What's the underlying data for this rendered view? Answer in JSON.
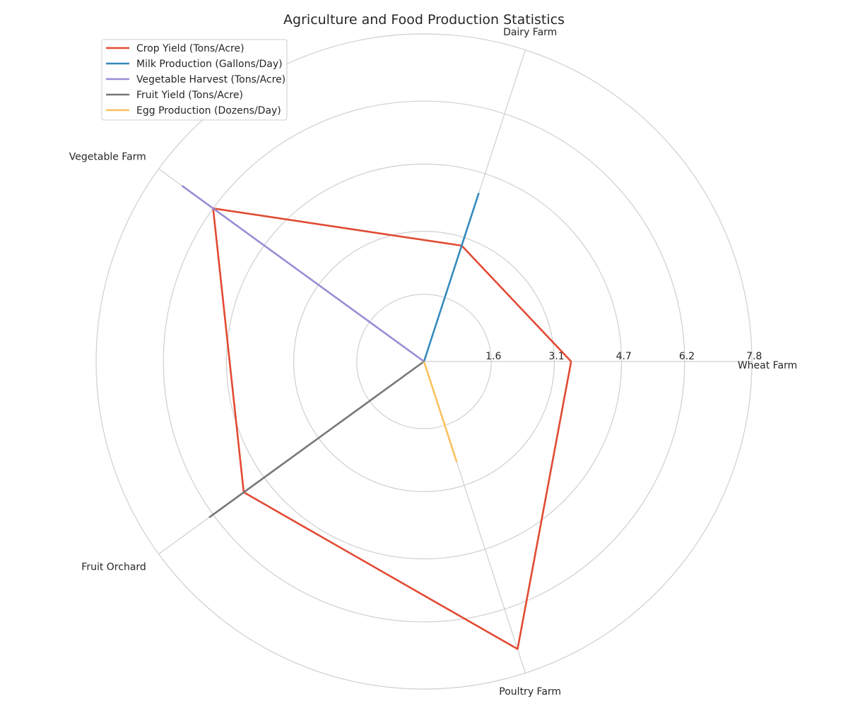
{
  "chart_data": {
    "type": "radar",
    "title": "Agriculture and Food Production Statistics",
    "categories": [
      "Wheat Farm",
      "Dairy Farm",
      "Vegetable Farm",
      "Fruit Orchard",
      "Poultry Farm"
    ],
    "radial_ticks": [
      "1.6",
      "3.1",
      "4.7",
      "6.2",
      "7.8"
    ],
    "rmax": 7.8,
    "grid": true,
    "legend_position": "top-left",
    "series": [
      {
        "name": "Crop Yield (Tons/Acre)",
        "color": "#E24A33",
        "values": [
          3.5,
          2.9,
          6.2,
          5.3,
          7.2
        ]
      },
      {
        "name": "Milk Production (Gallons/Day)",
        "color": "#348ABD",
        "values": [
          0,
          4.2,
          0,
          0,
          0
        ]
      },
      {
        "name": "Vegetable Harvest (Tons/Acre)",
        "color": "#988ED5",
        "values": [
          0,
          0,
          7.1,
          0,
          0
        ]
      },
      {
        "name": "Fruit Yield (Tons/Acre)",
        "color": "#777777",
        "values": [
          0,
          0,
          0,
          6.3,
          0
        ]
      },
      {
        "name": "Egg Production (Dozens/Day)",
        "color": "#FBC15E",
        "values": [
          0,
          0,
          0,
          0,
          2.5
        ]
      }
    ]
  }
}
